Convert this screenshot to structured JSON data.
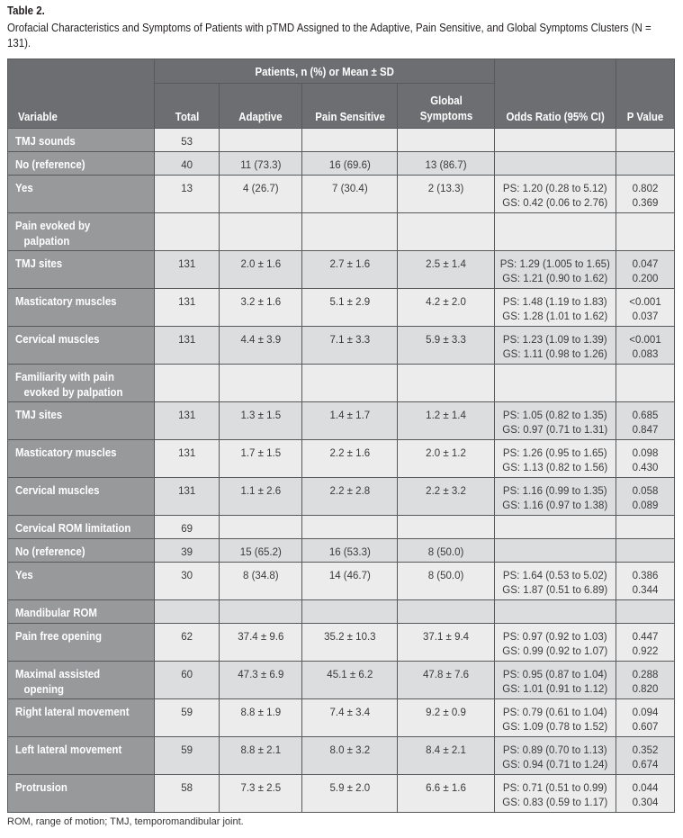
{
  "title": "Table 2.",
  "caption": "Orofacial Characteristics and Symptoms of Patients with pTMD Assigned to the Adaptive, Pain Sensitive, and Global Symptoms Clusters (N = 131).",
  "header": {
    "variable": "Variable",
    "group": "Patients, n (%) or Mean ± SD",
    "total": "Total",
    "adaptive": "Adaptive",
    "pain_sensitive": "Pain Sensitive",
    "global_symptoms": "Global Symptoms",
    "odds_ratio": "Odds Ratio (95% CI)",
    "p_value": "P Value"
  },
  "rows": [
    {
      "variable": "TMJ sounds",
      "total": "53",
      "adaptive": "",
      "pain_sensitive": "",
      "global_symptoms": "",
      "odds_ratio": "",
      "p_value": "",
      "shade": "light"
    },
    {
      "variable": "No (reference)",
      "total": "40",
      "adaptive": "11 (73.3)",
      "pain_sensitive": "16 (69.6)",
      "global_symptoms": "13 (86.7)",
      "odds_ratio": "",
      "p_value": "",
      "shade": "dark"
    },
    {
      "variable": "Yes",
      "total": "13",
      "adaptive": "4 (26.7)",
      "pain_sensitive": "7 (30.4)",
      "global_symptoms": "2 (13.3)",
      "odds_ratio": "PS: 1.20 (0.28 to 5.12)\nGS: 0.42 (0.06 to 2.76)",
      "p_value": "0.802\n0.369",
      "shade": "light"
    },
    {
      "variable": "Pain evoked by\n   palpation",
      "total": "",
      "adaptive": "",
      "pain_sensitive": "",
      "global_symptoms": "",
      "odds_ratio": "",
      "p_value": "",
      "shade": "light"
    },
    {
      "variable": "TMJ sites",
      "total": "131",
      "adaptive": "2.0 ± 1.6",
      "pain_sensitive": "2.7 ± 1.6",
      "global_symptoms": "2.5 ± 1.4",
      "odds_ratio": "PS: 1.29 (1.005 to 1.65)\nGS: 1.21 (0.90 to 1.62)",
      "p_value": "0.047\n0.200",
      "shade": "dark"
    },
    {
      "variable": "Masticatory muscles",
      "total": "131",
      "adaptive": "3.2 ± 1.6",
      "pain_sensitive": "5.1 ± 2.9",
      "global_symptoms": "4.2 ± 2.0",
      "odds_ratio": "PS: 1.48 (1.19 to 1.83)\nGS: 1.28 (1.01 to 1.62)",
      "p_value": "<0.001\n0.037",
      "shade": "light"
    },
    {
      "variable": "Cervical muscles",
      "total": "131",
      "adaptive": "4.4 ± 3.9",
      "pain_sensitive": "7.1 ± 3.3",
      "global_symptoms": "5.9 ± 3.3",
      "odds_ratio": "PS: 1.23 (1.09 to 1.39)\nGS: 1.11 (0.98 to 1.26)",
      "p_value": "<0.001\n0.083",
      "shade": "dark"
    },
    {
      "variable": "Familiarity with pain\n   evoked by palpation",
      "total": "",
      "adaptive": "",
      "pain_sensitive": "",
      "global_symptoms": "",
      "odds_ratio": "",
      "p_value": "",
      "shade": "light"
    },
    {
      "variable": "TMJ sites",
      "total": "131",
      "adaptive": "1.3 ± 1.5",
      "pain_sensitive": "1.4 ± 1.7",
      "global_symptoms": "1.2 ± 1.4",
      "odds_ratio": "PS: 1.05 (0.82 to 1.35)\nGS: 0.97 (0.71 to 1.31)",
      "p_value": "0.685\n0.847",
      "shade": "dark"
    },
    {
      "variable": "Masticatory muscles",
      "total": "131",
      "adaptive": "1.7 ± 1.5",
      "pain_sensitive": "2.2 ± 1.6",
      "global_symptoms": "2.0 ± 1.2",
      "odds_ratio": "PS: 1.26 (0.95 to 1.65)\nGS: 1.13 (0.82 to 1.56)",
      "p_value": "0.098\n0.430",
      "shade": "light"
    },
    {
      "variable": "Cervical muscles",
      "total": "131",
      "adaptive": "1.1 ± 2.6",
      "pain_sensitive": "2.2 ± 2.8",
      "global_symptoms": "2.2 ± 3.2",
      "odds_ratio": "PS: 1.16 (0.99 to 1.35)\nGS: 1.16 (0.97 to 1.38)",
      "p_value": "0.058\n0.089",
      "shade": "dark"
    },
    {
      "variable": "Cervical ROM limitation",
      "total": "69",
      "adaptive": "",
      "pain_sensitive": "",
      "global_symptoms": "",
      "odds_ratio": "",
      "p_value": "",
      "shade": "light"
    },
    {
      "variable": "No (reference)",
      "total": "39",
      "adaptive": "15 (65.2)",
      "pain_sensitive": "16 (53.3)",
      "global_symptoms": "8 (50.0)",
      "odds_ratio": "",
      "p_value": "",
      "shade": "dark"
    },
    {
      "variable": "Yes",
      "total": "30",
      "adaptive": "8 (34.8)",
      "pain_sensitive": "14 (46.7)",
      "global_symptoms": "8 (50.0)",
      "odds_ratio": "PS: 1.64 (0.53 to 5.02)\nGS: 1.87 (0.51 to 6.89)",
      "p_value": "0.386\n0.344",
      "shade": "light"
    },
    {
      "variable": "Mandibular ROM",
      "total": "",
      "adaptive": "",
      "pain_sensitive": "",
      "global_symptoms": "",
      "odds_ratio": "",
      "p_value": "",
      "shade": "dark"
    },
    {
      "variable": "Pain free opening",
      "total": "62",
      "adaptive": "37.4 ± 9.6",
      "pain_sensitive": "35.2 ± 10.3",
      "global_symptoms": "37.1 ± 9.4",
      "odds_ratio": "PS: 0.97 (0.92 to 1.03)\nGS: 0.99 (0.92 to 1.07)",
      "p_value": "0.447\n0.922",
      "shade": "light"
    },
    {
      "variable": "Maximal assisted\n   opening",
      "total": "60",
      "adaptive": "47.3 ± 6.9",
      "pain_sensitive": "45.1 ± 6.2",
      "global_symptoms": "47.8 ± 7.6",
      "odds_ratio": "PS: 0.95 (0.87 to 1.04)\nGS: 1.01 (0.91 to 1.12)",
      "p_value": "0.288\n0.820",
      "shade": "dark"
    },
    {
      "variable": "Right lateral movement",
      "total": "59",
      "adaptive": "8.8 ± 1.9",
      "pain_sensitive": "7.4 ± 3.4",
      "global_symptoms": "9.2 ± 0.9",
      "odds_ratio": "PS: 0.79 (0.61 to 1.04)\nGS: 1.09 (0.78 to 1.52)",
      "p_value": "0.094\n0.607",
      "shade": "light"
    },
    {
      "variable": "Left lateral movement",
      "total": "59",
      "adaptive": "8.8 ± 2.1",
      "pain_sensitive": "8.0 ± 3.2",
      "global_symptoms": "8.4 ± 2.1",
      "odds_ratio": "PS: 0.89 (0.70 to 1.13)\nGS: 0.94 (0.71 to 1.24)",
      "p_value": "0.352\n0.674",
      "shade": "dark"
    },
    {
      "variable": "Protrusion",
      "total": "58",
      "adaptive": "7.3 ± 2.5",
      "pain_sensitive": "5.9 ± 2.0",
      "global_symptoms": "6.6 ± 1.6",
      "odds_ratio": "PS: 0.71 (0.51 to 0.99)\nGS: 0.83 (0.59 to 1.17)",
      "p_value": "0.044\n0.304",
      "shade": "light"
    }
  ],
  "footnote": "ROM, range of motion; TMJ, temporomandibular joint."
}
